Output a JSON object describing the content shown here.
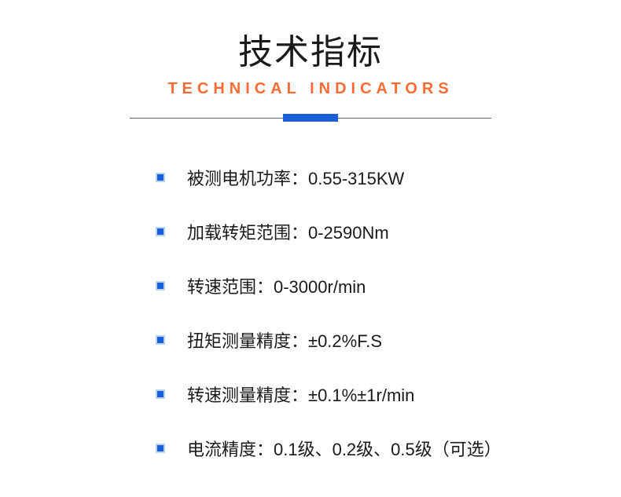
{
  "header": {
    "title": "技术指标",
    "subtitle": "TECHNICAL INDICATORS"
  },
  "colors": {
    "title_color": "#1a1a1a",
    "subtitle_color": "#ff6b35",
    "accent_color": "#1a5fd9",
    "bullet_border": "#b8d4f5",
    "divider_line": "#666666",
    "text_color": "#1a1a1a",
    "background": "#ffffff"
  },
  "typography": {
    "title_fontsize": 44,
    "subtitle_fontsize": 20,
    "subtitle_letter_spacing": 6,
    "spec_fontsize": 22
  },
  "layout": {
    "divider_width": 460,
    "accent_width": 70,
    "accent_height": 10,
    "bullet_size": 12,
    "bullet_border_width": 2,
    "list_left_padding": 198,
    "item_spacing": 37
  },
  "specs": [
    {
      "label": "被测电机功率：0.55-315KW"
    },
    {
      "label": "加载转矩范围：0-2590Nm"
    },
    {
      "label": "转速范围：0-3000r/min"
    },
    {
      "label": "扭矩测量精度：±0.2%F.S"
    },
    {
      "label": "转速测量精度：±0.1%±1r/min"
    },
    {
      "label": "电流精度：0.1级、0.2级、0.5级（可选）"
    }
  ]
}
